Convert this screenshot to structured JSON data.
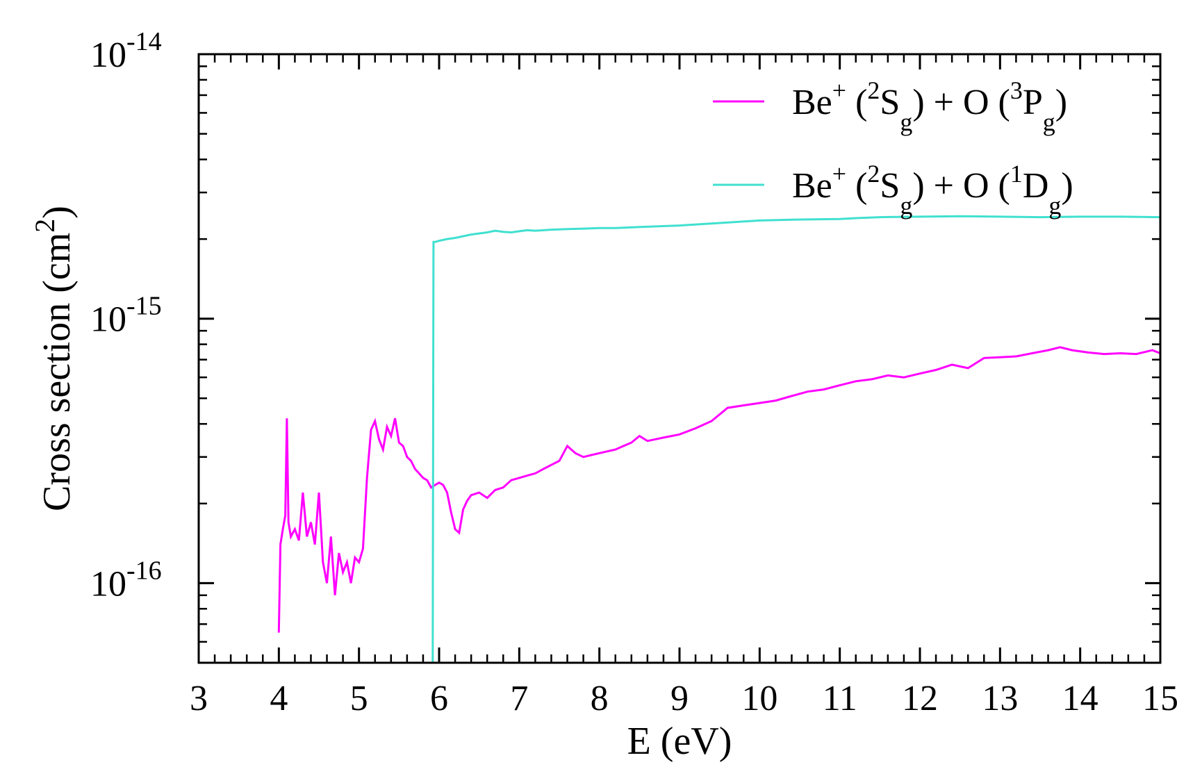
{
  "chart_data": {
    "type": "line",
    "title": "",
    "xlabel": "E (eV)",
    "ylabel": "Cross section (cm",
    "ylabel_sup": "2",
    "ylabel_close": ")",
    "xlim": [
      3,
      15
    ],
    "ylim": [
      5e-17,
      1e-14
    ],
    "yscale": "log",
    "grid": false,
    "legend_position": "top-right",
    "x_ticks": [
      "3",
      "4",
      "5",
      "6",
      "7",
      "8",
      "9",
      "10",
      "11",
      "12",
      "13",
      "14",
      "15"
    ],
    "y_ticks": [
      {
        "value": 1e-14,
        "base": "10",
        "exp": "-14"
      },
      {
        "value": 1e-15,
        "base": "10",
        "exp": "-15"
      },
      {
        "value": 1e-16,
        "base": "10",
        "exp": "-16"
      }
    ],
    "series": [
      {
        "name": "Be+ (2Sg) + O (3Pg)",
        "legend": {
          "species1": "Be",
          "charge": "+",
          "mult1": "2",
          "term1": "S",
          "sub1": "g",
          "plus": "+ O (",
          "mult2": "3",
          "term2": "P",
          "sub2": "g",
          "close": ")"
        },
        "color": "#ff00ff",
        "x": [
          4.0,
          4.02,
          4.05,
          4.08,
          4.1,
          4.12,
          4.15,
          4.2,
          4.25,
          4.3,
          4.35,
          4.4,
          4.45,
          4.5,
          4.55,
          4.6,
          4.65,
          4.7,
          4.75,
          4.8,
          4.85,
          4.9,
          4.95,
          5.0,
          5.05,
          5.1,
          5.15,
          5.2,
          5.25,
          5.3,
          5.35,
          5.4,
          5.45,
          5.5,
          5.55,
          5.6,
          5.65,
          5.7,
          5.75,
          5.8,
          5.85,
          5.9,
          5.95,
          6.0,
          6.05,
          6.1,
          6.15,
          6.2,
          6.25,
          6.3,
          6.35,
          6.4,
          6.5,
          6.6,
          6.7,
          6.8,
          6.9,
          7.0,
          7.1,
          7.2,
          7.3,
          7.4,
          7.5,
          7.6,
          7.7,
          7.8,
          7.9,
          8.0,
          8.1,
          8.2,
          8.3,
          8.4,
          8.5,
          8.6,
          8.7,
          8.8,
          8.9,
          9.0,
          9.2,
          9.4,
          9.6,
          9.8,
          10.0,
          10.2,
          10.4,
          10.6,
          10.8,
          11.0,
          11.2,
          11.4,
          11.6,
          11.8,
          12.0,
          12.2,
          12.4,
          12.6,
          12.8,
          13.0,
          13.2,
          13.4,
          13.6,
          13.75,
          13.9,
          14.1,
          14.3,
          14.5,
          14.7,
          14.9,
          15.0
        ],
        "values": [
          6.5e-17,
          1.4e-16,
          1.6e-16,
          1.8e-16,
          4.2e-16,
          1.7e-16,
          1.5e-16,
          1.6e-16,
          1.45e-16,
          2.2e-16,
          1.5e-16,
          1.7e-16,
          1.4e-16,
          2.2e-16,
          1.2e-16,
          1e-16,
          1.5e-16,
          9e-17,
          1.3e-16,
          1.1e-16,
          1.2e-16,
          1e-16,
          1.25e-16,
          1.2e-16,
          1.35e-16,
          2.5e-16,
          3.8e-16,
          4.1e-16,
          3.5e-16,
          3.2e-16,
          3.9e-16,
          3.6e-16,
          4.2e-16,
          3.4e-16,
          3.3e-16,
          3e-16,
          2.9e-16,
          2.7e-16,
          2.6e-16,
          2.5e-16,
          2.45e-16,
          2.3e-16,
          2.35e-16,
          2.4e-16,
          2.35e-16,
          2.2e-16,
          1.85e-16,
          1.6e-16,
          1.55e-16,
          1.9e-16,
          2.05e-16,
          2.15e-16,
          2.2e-16,
          2.1e-16,
          2.25e-16,
          2.3e-16,
          2.45e-16,
          2.5e-16,
          2.55e-16,
          2.6e-16,
          2.7e-16,
          2.8e-16,
          2.9e-16,
          3.3e-16,
          3.1e-16,
          3e-16,
          3.05e-16,
          3.1e-16,
          3.15e-16,
          3.2e-16,
          3.3e-16,
          3.4e-16,
          3.6e-16,
          3.45e-16,
          3.5e-16,
          3.55e-16,
          3.6e-16,
          3.65e-16,
          3.85e-16,
          4.1e-16,
          4.6e-16,
          4.7e-16,
          4.8e-16,
          4.9e-16,
          5.1e-16,
          5.3e-16,
          5.4e-16,
          5.6e-16,
          5.8e-16,
          5.9e-16,
          6.1e-16,
          6e-16,
          6.2e-16,
          6.4e-16,
          6.7e-16,
          6.5e-16,
          7.1e-16,
          7.15e-16,
          7.2e-16,
          7.4e-16,
          7.6e-16,
          7.8e-16,
          7.6e-16,
          7.45e-16,
          7.35e-16,
          7.4e-16,
          7.35e-16,
          7.6e-16,
          7.4e-16
        ]
      },
      {
        "name": "Be+ (2Sg) + O (1Dg)",
        "legend": {
          "species1": "Be",
          "charge": "+",
          "mult1": "2",
          "term1": "S",
          "sub1": "g",
          "plus": "+ O (",
          "mult2": "1",
          "term2": "D",
          "sub2": "g",
          "close": ")"
        },
        "color": "#40e0d0",
        "x": [
          5.92,
          5.93,
          5.95,
          6.0,
          6.1,
          6.2,
          6.3,
          6.4,
          6.5,
          6.6,
          6.7,
          6.8,
          6.9,
          7.0,
          7.1,
          7.2,
          7.4,
          7.6,
          7.8,
          8.0,
          8.2,
          8.5,
          9.0,
          9.5,
          10.0,
          10.5,
          11.0,
          11.2,
          11.5,
          12.0,
          12.5,
          13.0,
          13.5,
          14.0,
          14.5,
          15.0
        ],
        "values": [
          5e-17,
          1.95e-15,
          1.95e-15,
          1.97e-15,
          2e-15,
          2.02e-15,
          2.05e-15,
          2.08e-15,
          2.1e-15,
          2.12e-15,
          2.15e-15,
          2.13e-15,
          2.12e-15,
          2.14e-15,
          2.16e-15,
          2.15e-15,
          2.17e-15,
          2.18e-15,
          2.19e-15,
          2.2e-15,
          2.2e-15,
          2.22e-15,
          2.25e-15,
          2.3e-15,
          2.35e-15,
          2.37e-15,
          2.38e-15,
          2.4e-15,
          2.42e-15,
          2.43e-15,
          2.44e-15,
          2.43e-15,
          2.42e-15,
          2.43e-15,
          2.43e-15,
          2.42e-15
        ]
      }
    ]
  }
}
